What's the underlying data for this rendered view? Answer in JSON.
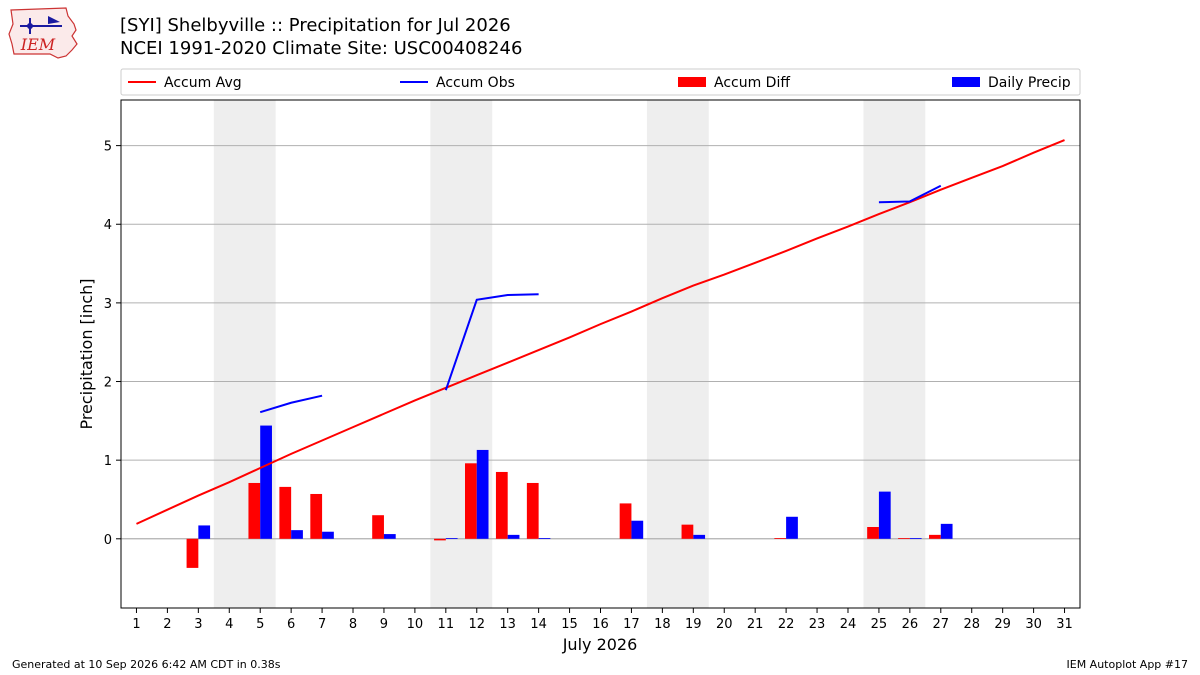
{
  "header": {
    "logo_text": "IEM",
    "title_line1": "[SYI] Shelbyville :: Precipitation for Jul 2026",
    "title_line2": "NCEI 1991-2020 Climate Site: USC00408246"
  },
  "footer": {
    "left": "Generated at 10 Sep 2026 6:42 AM CDT in 0.38s",
    "right": "IEM Autoplot App #17"
  },
  "colors": {
    "avg": "#ff0000",
    "obs": "#0000ff",
    "diff": "#ff0000",
    "daily": "#0000ff",
    "weekend_band": "#eeeeee",
    "grid": "#b0b0b0"
  },
  "chart_data": {
    "type": "bar",
    "xlabel": "July 2026",
    "ylabel": "Precipitation [inch]",
    "xlim": [
      0.5,
      31.5
    ],
    "ylim": [
      -0.88,
      5.58
    ],
    "yticks": [
      0,
      1,
      2,
      3,
      4,
      5
    ],
    "grid": true,
    "legend_position": "top",
    "days": [
      1,
      2,
      3,
      4,
      5,
      6,
      7,
      8,
      9,
      10,
      11,
      12,
      13,
      14,
      15,
      16,
      17,
      18,
      19,
      20,
      21,
      22,
      23,
      24,
      25,
      26,
      27,
      28,
      29,
      30,
      31
    ],
    "weekend_bands": [
      [
        3.5,
        5.5
      ],
      [
        10.5,
        12.5
      ],
      [
        17.5,
        19.5
      ],
      [
        24.5,
        26.5
      ]
    ],
    "legend": [
      {
        "key": "avg",
        "label": "Accum Avg",
        "kind": "line"
      },
      {
        "key": "obs",
        "label": "Accum Obs",
        "kind": "line"
      },
      {
        "key": "diff",
        "label": "Accum Diff",
        "kind": "bar"
      },
      {
        "key": "daily",
        "label": "Daily Precip",
        "kind": "bar"
      }
    ],
    "series": [
      {
        "name": "Accum Avg",
        "kind": "line",
        "x": [
          1,
          2,
          3,
          4,
          5,
          6,
          7,
          8,
          9,
          10,
          11,
          12,
          13,
          14,
          15,
          16,
          17,
          18,
          19,
          20,
          21,
          22,
          23,
          24,
          25,
          26,
          27,
          28,
          29,
          30,
          31
        ],
        "values": [
          0.19,
          0.37,
          0.55,
          0.72,
          0.9,
          1.08,
          1.25,
          1.42,
          1.59,
          1.76,
          1.92,
          2.08,
          2.24,
          2.4,
          2.56,
          2.73,
          2.89,
          3.06,
          3.22,
          3.36,
          3.51,
          3.66,
          3.82,
          3.97,
          4.13,
          4.28,
          4.44,
          4.59,
          4.74,
          4.91,
          5.07
        ]
      },
      {
        "name": "Accum Obs",
        "kind": "line",
        "segments": [
          {
            "x": [
              5,
              6,
              7
            ],
            "values": [
              1.61,
              1.73,
              1.82
            ]
          },
          {
            "x": [
              11,
              12,
              13,
              14
            ],
            "values": [
              1.89,
              3.04,
              3.1,
              3.11
            ]
          },
          {
            "x": [
              25,
              26,
              27
            ],
            "values": [
              4.28,
              4.29,
              4.49
            ]
          }
        ]
      },
      {
        "name": "Accum Diff",
        "kind": "bar",
        "x": [
          3,
          5,
          6,
          7,
          9,
          11,
          12,
          13,
          14,
          17,
          19,
          22,
          25,
          26,
          27
        ],
        "values": [
          -0.37,
          0.71,
          0.66,
          0.57,
          0.3,
          -0.02,
          0.96,
          0.85,
          0.71,
          0.45,
          0.18,
          0.01,
          0.15,
          0.01,
          0.05
        ]
      },
      {
        "name": "Daily Precip",
        "kind": "bar",
        "x": [
          3,
          5,
          6,
          7,
          9,
          11,
          12,
          13,
          14,
          17,
          19,
          22,
          25,
          26,
          27
        ],
        "values": [
          0.17,
          1.44,
          0.11,
          0.09,
          0.06,
          0.01,
          1.13,
          0.05,
          0.01,
          0.23,
          0.05,
          0.28,
          0.6,
          0.01,
          0.19
        ]
      }
    ]
  }
}
